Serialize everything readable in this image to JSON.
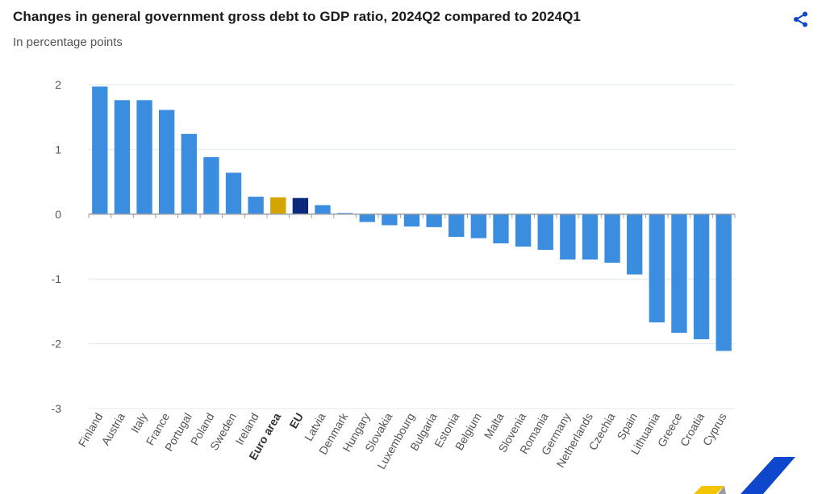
{
  "header": {
    "title": "Changes in general government gross debt to GDP ratio, 2024Q2 compared to 2024Q1",
    "subtitle": "In percentage points",
    "share_icon": "share-icon"
  },
  "colors": {
    "default_bar": "#3b8de0",
    "euro_area_bar": "#d4a500",
    "eu_bar": "#0c2a7a",
    "grid": "#dde8ee",
    "tick_text": "#555555"
  },
  "chart_data": {
    "type": "bar",
    "title": "Changes in general government gross debt to GDP ratio, 2024Q2 compared to 2024Q1",
    "subtitle": "In percentage points",
    "categories": [
      "Finland",
      "Austria",
      "Italy",
      "France",
      "Portugal",
      "Poland",
      "Sweden",
      "Ireland",
      "Euro area",
      "EU",
      "Latvia",
      "Denmark",
      "Hungary",
      "Slovakia",
      "Luxembourg",
      "Bulgaria",
      "Estonia",
      "Belgium",
      "Malta",
      "Slovenia",
      "Romania",
      "Germany",
      "Netherlands",
      "Czechia",
      "Spain",
      "Lithuania",
      "Greece",
      "Croatia",
      "Cyprus"
    ],
    "values": [
      1.97,
      1.76,
      1.76,
      1.61,
      1.24,
      0.88,
      0.64,
      0.27,
      0.26,
      0.25,
      0.14,
      0.01,
      -0.12,
      -0.17,
      -0.19,
      -0.2,
      -0.35,
      -0.37,
      -0.45,
      -0.5,
      -0.55,
      -0.7,
      -0.7,
      -0.75,
      -0.93,
      -1.67,
      -1.83,
      -1.93,
      -2.11
    ],
    "highlight": {
      "Euro area": "#d4a500",
      "EU": "#0c2a7a"
    },
    "bold_labels": [
      "Euro area",
      "EU"
    ],
    "ylim": [
      -3,
      2
    ],
    "yticks": [
      "2",
      "1",
      "0",
      "-1",
      "-2",
      "-3"
    ],
    "grid": true,
    "legend": "none"
  }
}
